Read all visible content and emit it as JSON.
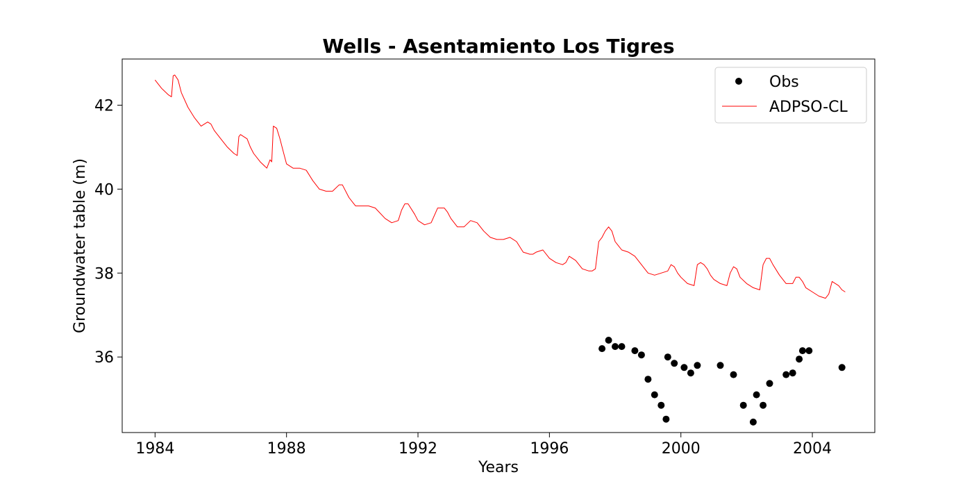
{
  "chart_data": {
    "type": "line",
    "title": "Wells - Asentamiento Los Tigres",
    "xlabel": "Years",
    "ylabel": "Groundwater table (m)",
    "xlim": [
      1983.0,
      2005.9
    ],
    "ylim": [
      34.2,
      43.1
    ],
    "xticks": [
      1984,
      1988,
      1992,
      1996,
      2000,
      2004
    ],
    "yticks": [
      36,
      38,
      40,
      42
    ],
    "grid": false,
    "legend_position": "top-right",
    "series": [
      {
        "name": "Obs",
        "style": "markers",
        "color": "#000000",
        "x": [
          1997.6,
          1997.8,
          1998.0,
          1998.2,
          1998.6,
          1998.8,
          1999.0,
          1999.2,
          1999.4,
          1999.55,
          1999.6,
          1999.8,
          2000.1,
          2000.3,
          2000.5,
          2001.2,
          2001.6,
          2001.9,
          2002.2,
          2002.3,
          2002.5,
          2002.7,
          2003.2,
          2003.4,
          2003.6,
          2003.7,
          2003.9,
          2004.9
        ],
        "y": [
          36.2,
          36.4,
          36.25,
          36.25,
          36.15,
          36.05,
          35.47,
          35.1,
          34.85,
          34.52,
          36.0,
          35.85,
          35.75,
          35.62,
          35.8,
          35.8,
          35.58,
          34.85,
          34.45,
          35.1,
          34.85,
          35.37,
          35.58,
          35.62,
          35.95,
          36.15,
          36.15,
          35.75
        ]
      },
      {
        "name": "ADPSO-CL",
        "style": "line",
        "color": "#ff0000",
        "x": [
          1984.0,
          1984.2,
          1984.4,
          1984.5,
          1984.55,
          1984.6,
          1984.7,
          1984.8,
          1985.0,
          1985.2,
          1985.4,
          1985.6,
          1985.7,
          1985.8,
          1986.0,
          1986.2,
          1986.4,
          1986.5,
          1986.55,
          1986.6,
          1986.8,
          1986.9,
          1987.0,
          1987.2,
          1987.4,
          1987.5,
          1987.55,
          1987.6,
          1987.7,
          1987.8,
          1987.9,
          1988.0,
          1988.2,
          1988.4,
          1988.6,
          1988.8,
          1989.0,
          1989.2,
          1989.4,
          1989.6,
          1989.7,
          1989.9,
          1990.1,
          1990.3,
          1990.5,
          1990.7,
          1991.0,
          1991.2,
          1991.4,
          1991.5,
          1991.6,
          1991.7,
          1991.9,
          1992.0,
          1992.2,
          1992.4,
          1992.6,
          1992.8,
          1992.9,
          1993.0,
          1993.2,
          1993.4,
          1993.6,
          1993.8,
          1994.0,
          1994.2,
          1994.4,
          1994.6,
          1994.8,
          1995.0,
          1995.2,
          1995.4,
          1995.5,
          1995.6,
          1995.8,
          1996.0,
          1996.2,
          1996.4,
          1996.5,
          1996.6,
          1996.8,
          1997.0,
          1997.2,
          1997.3,
          1997.4,
          1997.5,
          1997.6,
          1997.7,
          1997.8,
          1997.9,
          1998.0,
          1998.2,
          1998.4,
          1998.6,
          1998.8,
          1999.0,
          1999.2,
          1999.4,
          1999.6,
          1999.7,
          1999.8,
          1999.9,
          2000.0,
          2000.2,
          2000.4,
          2000.5,
          2000.6,
          2000.7,
          2000.8,
          2000.9,
          2001.0,
          2001.2,
          2001.4,
          2001.5,
          2001.6,
          2001.7,
          2001.8,
          2002.0,
          2002.2,
          2002.4,
          2002.5,
          2002.6,
          2002.7,
          2002.8,
          2003.0,
          2003.2,
          2003.4,
          2003.5,
          2003.6,
          2003.7,
          2003.8,
          2004.0,
          2004.2,
          2004.4,
          2004.5,
          2004.6,
          2004.7,
          2004.8,
          2004.9,
          2005.0
        ],
        "y": [
          42.6,
          42.4,
          42.25,
          42.2,
          42.7,
          42.72,
          42.6,
          42.3,
          41.95,
          41.7,
          41.5,
          41.6,
          41.55,
          41.4,
          41.2,
          41.0,
          40.85,
          40.8,
          41.25,
          41.3,
          41.2,
          41.0,
          40.85,
          40.65,
          40.5,
          40.7,
          40.65,
          41.5,
          41.45,
          41.2,
          40.9,
          40.6,
          40.5,
          40.5,
          40.45,
          40.2,
          40.0,
          39.95,
          39.95,
          40.1,
          40.1,
          39.8,
          39.6,
          39.6,
          39.6,
          39.55,
          39.3,
          39.2,
          39.25,
          39.5,
          39.65,
          39.65,
          39.4,
          39.25,
          39.15,
          39.2,
          39.55,
          39.55,
          39.45,
          39.3,
          39.1,
          39.1,
          39.25,
          39.2,
          39.0,
          38.85,
          38.8,
          38.8,
          38.85,
          38.75,
          38.5,
          38.45,
          38.45,
          38.5,
          38.55,
          38.35,
          38.25,
          38.2,
          38.25,
          38.4,
          38.3,
          38.1,
          38.05,
          38.05,
          38.1,
          38.75,
          38.85,
          39.0,
          39.1,
          39.0,
          38.75,
          38.55,
          38.5,
          38.4,
          38.2,
          38.0,
          37.95,
          38.0,
          38.05,
          38.2,
          38.15,
          38.0,
          37.9,
          37.75,
          37.7,
          38.2,
          38.25,
          38.2,
          38.1,
          37.95,
          37.85,
          37.75,
          37.7,
          38.0,
          38.15,
          38.1,
          37.9,
          37.75,
          37.65,
          37.6,
          38.2,
          38.35,
          38.35,
          38.2,
          37.95,
          37.75,
          37.75,
          37.9,
          37.9,
          37.8,
          37.65,
          37.55,
          37.45,
          37.4,
          37.5,
          37.8,
          37.75,
          37.7,
          37.6,
          37.55
        ]
      }
    ]
  }
}
